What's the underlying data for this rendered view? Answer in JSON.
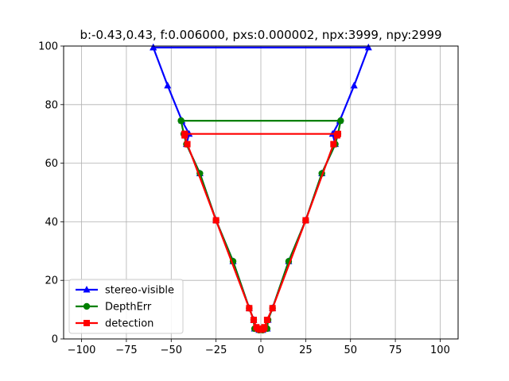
{
  "chart_data": {
    "type": "line",
    "title": "b:-0.43,0.43, f:0.006000, pxs:0.000002, npx:3999, npy:2999",
    "xlabel": "",
    "ylabel": "",
    "xlim": [
      -110,
      110
    ],
    "ylim": [
      0,
      100
    ],
    "xticks": [
      -100,
      -75,
      -50,
      -25,
      0,
      25,
      50,
      75,
      100
    ],
    "yticks": [
      0,
      20,
      40,
      60,
      80,
      100
    ],
    "grid": true,
    "legend_position": "lower-left",
    "series": [
      {
        "name": "stereo-visible",
        "color": "#0000ff",
        "marker": "triangle",
        "points": [
          [
            -60,
            99.5
          ],
          [
            60,
            99.5
          ],
          [
            52,
            86.5
          ],
          [
            44,
            74.5
          ],
          [
            40,
            70
          ],
          [
            41.5,
            66.5
          ],
          [
            34,
            56.5
          ],
          [
            25,
            40.5
          ],
          [
            15.5,
            26.5
          ],
          [
            6.5,
            10.5
          ],
          [
            4,
            6.5
          ],
          [
            3.5,
            3.5
          ],
          [
            1,
            3
          ],
          [
            -1,
            3
          ],
          [
            -3.5,
            3.5
          ],
          [
            -4,
            6.5
          ],
          [
            -6.5,
            10.5
          ],
          [
            -15.5,
            26.5
          ],
          [
            -25,
            40.5
          ],
          [
            -34,
            56.5
          ],
          [
            -41.5,
            66.5
          ],
          [
            -40,
            70
          ],
          [
            -44,
            74.5
          ],
          [
            -52,
            86.5
          ],
          [
            -60,
            99.5
          ]
        ]
      },
      {
        "name": "DepthErr",
        "color": "#008000",
        "marker": "circle",
        "points": [
          [
            -44.5,
            74.5
          ],
          [
            44.5,
            74.5
          ],
          [
            43,
            70
          ],
          [
            41.5,
            66.5
          ],
          [
            34,
            56.5
          ],
          [
            25,
            40.5
          ],
          [
            15.5,
            26.5
          ],
          [
            6.5,
            10.5
          ],
          [
            4,
            6.5
          ],
          [
            3.5,
            3.5
          ],
          [
            1,
            3
          ],
          [
            -1,
            3
          ],
          [
            -3.5,
            3.5
          ],
          [
            -4,
            6.5
          ],
          [
            -6.5,
            10.5
          ],
          [
            -15.5,
            26.5
          ],
          [
            -25,
            40.5
          ],
          [
            -34,
            56.5
          ],
          [
            -41.5,
            66.5
          ],
          [
            -43,
            70
          ],
          [
            -44.5,
            74.5
          ]
        ]
      },
      {
        "name": "detection",
        "color": "#ff0000",
        "marker": "square",
        "points": [
          [
            -42.5,
            70
          ],
          [
            43,
            70
          ],
          [
            42.5,
            69.5
          ],
          [
            40.5,
            66.5
          ],
          [
            25,
            40.5
          ],
          [
            6.5,
            10.5
          ],
          [
            3.5,
            6.5
          ],
          [
            2,
            4
          ],
          [
            1.5,
            3.5
          ],
          [
            0.5,
            3.2
          ],
          [
            -0.5,
            3.2
          ],
          [
            -1.5,
            3.5
          ],
          [
            -2.5,
            4
          ],
          [
            -4,
            6.5
          ],
          [
            -6.5,
            10.5
          ],
          [
            -25,
            40.5
          ],
          [
            -41,
            66.5
          ],
          [
            -42.5,
            69.5
          ],
          [
            -42.5,
            70
          ]
        ]
      }
    ]
  }
}
